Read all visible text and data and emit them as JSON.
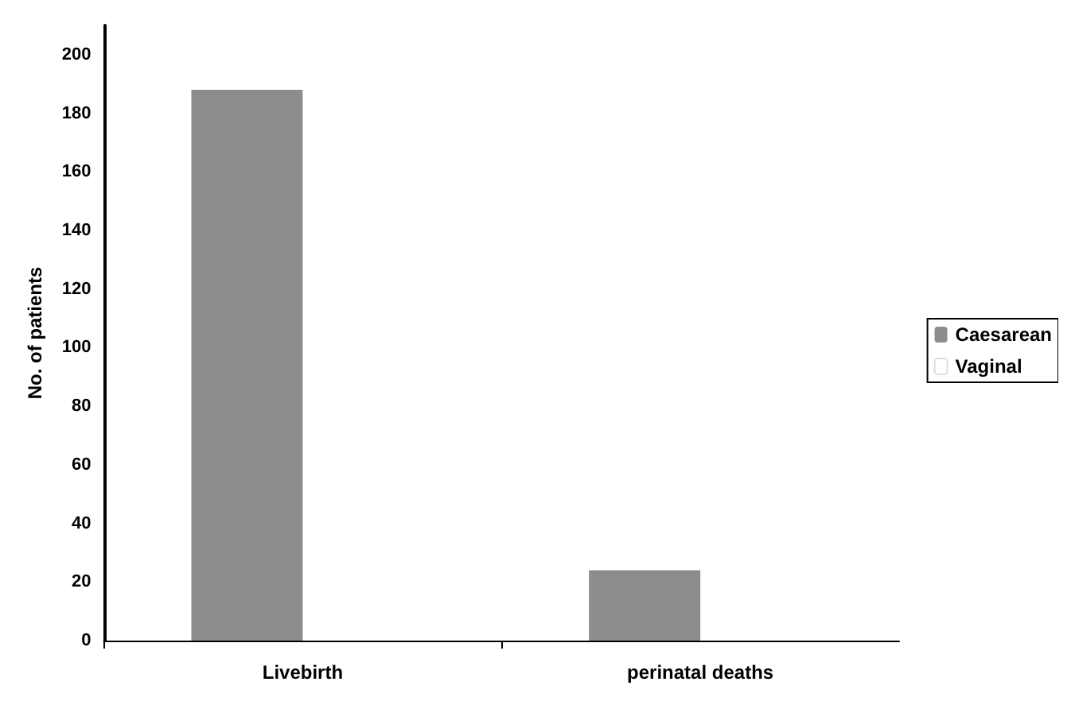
{
  "chart_data": {
    "type": "bar",
    "ylabel": "No. of patients",
    "categories": [
      "Livebirth",
      "perinatal deaths"
    ],
    "series": [
      {
        "name": "Caesarean",
        "color": "#8c8c8c",
        "values": [
          188,
          24
        ]
      },
      {
        "name": "Vaginal",
        "color": "#ffffff",
        "values": [
          null,
          null
        ]
      }
    ],
    "ylim": [
      0,
      210
    ],
    "yticks": [
      0,
      20,
      40,
      60,
      80,
      100,
      120,
      140,
      160,
      180,
      200
    ],
    "grid": false,
    "legend": "right"
  }
}
